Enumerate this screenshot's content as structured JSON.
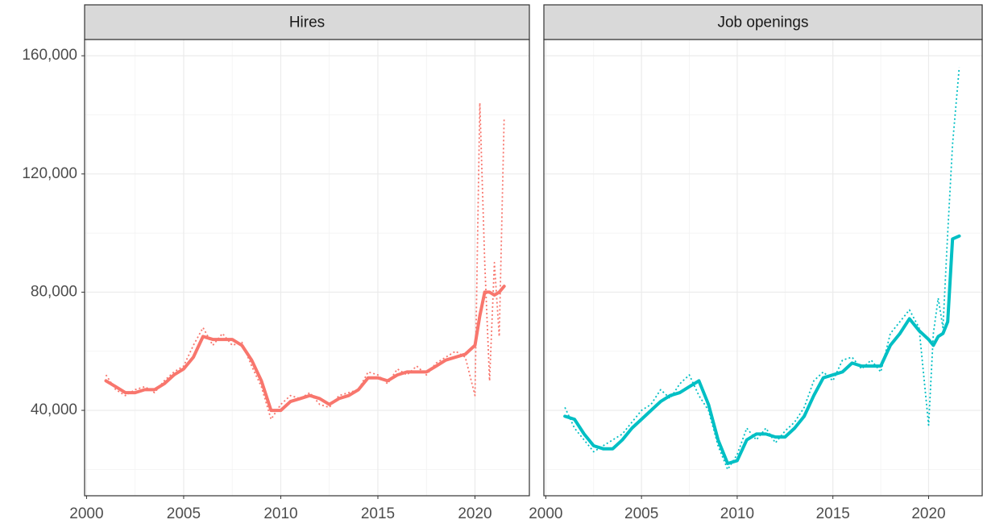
{
  "chart_data": [
    {
      "type": "line",
      "title": "Hires",
      "x": [
        2001,
        2001.5,
        2002,
        2002.5,
        2003,
        2003.5,
        2004,
        2004.5,
        2005,
        2005.5,
        2006,
        2006.5,
        2007,
        2007.5,
        2008,
        2008.5,
        2009,
        2009.5,
        2010,
        2010.5,
        2011,
        2011.5,
        2012,
        2012.5,
        2013,
        2013.5,
        2014,
        2014.5,
        2015,
        2015.5,
        2016,
        2016.5,
        2017,
        2017.5,
        2018,
        2018.5,
        2019,
        2019.5,
        2020,
        2020.25,
        2020.5,
        2020.75,
        2021,
        2021.25,
        2021.5
      ],
      "series": [
        {
          "color": "#F8766D",
          "linetype": "dotted",
          "values": [
            52000,
            47000,
            45000,
            47000,
            48000,
            46000,
            50000,
            53000,
            55000,
            62000,
            68000,
            62000,
            66000,
            62000,
            63000,
            55000,
            48000,
            37000,
            42000,
            45000,
            44000,
            46000,
            42000,
            41000,
            45000,
            46000,
            47000,
            53000,
            52000,
            49000,
            54000,
            52000,
            55000,
            52000,
            56000,
            58000,
            60000,
            58000,
            45000,
            144000,
            90000,
            50000,
            90000,
            65000,
            139000
          ]
        },
        {
          "color": "#F8766D",
          "linetype": "solid",
          "values": [
            50000,
            48000,
            46000,
            46000,
            47000,
            47000,
            49000,
            52000,
            54000,
            58000,
            65000,
            64000,
            64000,
            64000,
            62000,
            57000,
            50000,
            40000,
            40000,
            43000,
            44000,
            45000,
            44000,
            42000,
            44000,
            45000,
            47000,
            51000,
            51000,
            50000,
            52000,
            53000,
            53000,
            53000,
            55000,
            57000,
            58000,
            59000,
            62000,
            72000,
            80000,
            80000,
            79000,
            80000,
            82000
          ]
        }
      ],
      "xlim": [
        1999.9,
        2022.8
      ],
      "xticks": [
        2000,
        2005,
        2010,
        2015,
        2020
      ],
      "x_minor_ticks": [
        2002.5,
        2007.5,
        2012.5,
        2017.5
      ],
      "ylim": [
        11100,
        165500
      ],
      "yticks": [
        {
          "value": 40000,
          "label": "40,000"
        },
        {
          "value": 80000,
          "label": "80,000"
        },
        {
          "value": 120000,
          "label": "120,000"
        },
        {
          "value": 160000,
          "label": "160,000"
        }
      ],
      "y_minor_ticks": [
        20000,
        60000,
        100000,
        140000
      ],
      "y_tick_labels": true,
      "grid": true
    },
    {
      "type": "line",
      "title": "Job openings",
      "x": [
        2001,
        2001.5,
        2002,
        2002.5,
        2003,
        2003.5,
        2004,
        2004.5,
        2005,
        2005.5,
        2006,
        2006.5,
        2007,
        2007.5,
        2008,
        2008.5,
        2009,
        2009.5,
        2010,
        2010.5,
        2011,
        2011.5,
        2012,
        2012.5,
        2013,
        2013.5,
        2014,
        2014.5,
        2015,
        2015.5,
        2016,
        2016.5,
        2017,
        2017.5,
        2018,
        2018.5,
        2019,
        2019.5,
        2020,
        2020.25,
        2020.5,
        2020.75,
        2021,
        2021.25,
        2021.6
      ],
      "series": [
        {
          "color": "#00BFC4",
          "linetype": "dotted",
          "values": [
            41000,
            34000,
            30000,
            26000,
            28000,
            30000,
            32000,
            36000,
            40000,
            42000,
            47000,
            44000,
            49000,
            52000,
            45000,
            40000,
            28000,
            20000,
            25000,
            34000,
            30000,
            34000,
            29000,
            33000,
            36000,
            41000,
            50000,
            53000,
            50000,
            57000,
            58000,
            54000,
            57000,
            53000,
            66000,
            70000,
            74000,
            68000,
            35000,
            66000,
            78000,
            68000,
            100000,
            130000,
            156000
          ]
        },
        {
          "color": "#00BFC4",
          "linetype": "solid",
          "values": [
            38000,
            37000,
            32000,
            28000,
            27000,
            27000,
            30000,
            34000,
            37000,
            40000,
            43000,
            45000,
            46000,
            48000,
            50000,
            42000,
            30000,
            22000,
            23000,
            30000,
            32000,
            32000,
            31000,
            31000,
            34000,
            38000,
            45000,
            51000,
            52000,
            53000,
            56000,
            55000,
            55000,
            55000,
            62000,
            66000,
            71000,
            67000,
            64000,
            62000,
            65000,
            66000,
            70000,
            98000,
            99000
          ]
        }
      ],
      "xlim": [
        1999.9,
        2022.8
      ],
      "xticks": [
        2000,
        2005,
        2010,
        2015,
        2020
      ],
      "x_minor_ticks": [
        2002.5,
        2007.5,
        2012.5,
        2017.5
      ],
      "ylim": [
        11100,
        165500
      ],
      "yticks": [
        40000,
        80000,
        120000,
        160000
      ],
      "y_minor_ticks": [
        20000,
        60000,
        100000,
        140000
      ],
      "y_tick_labels": false,
      "grid": true
    }
  ]
}
